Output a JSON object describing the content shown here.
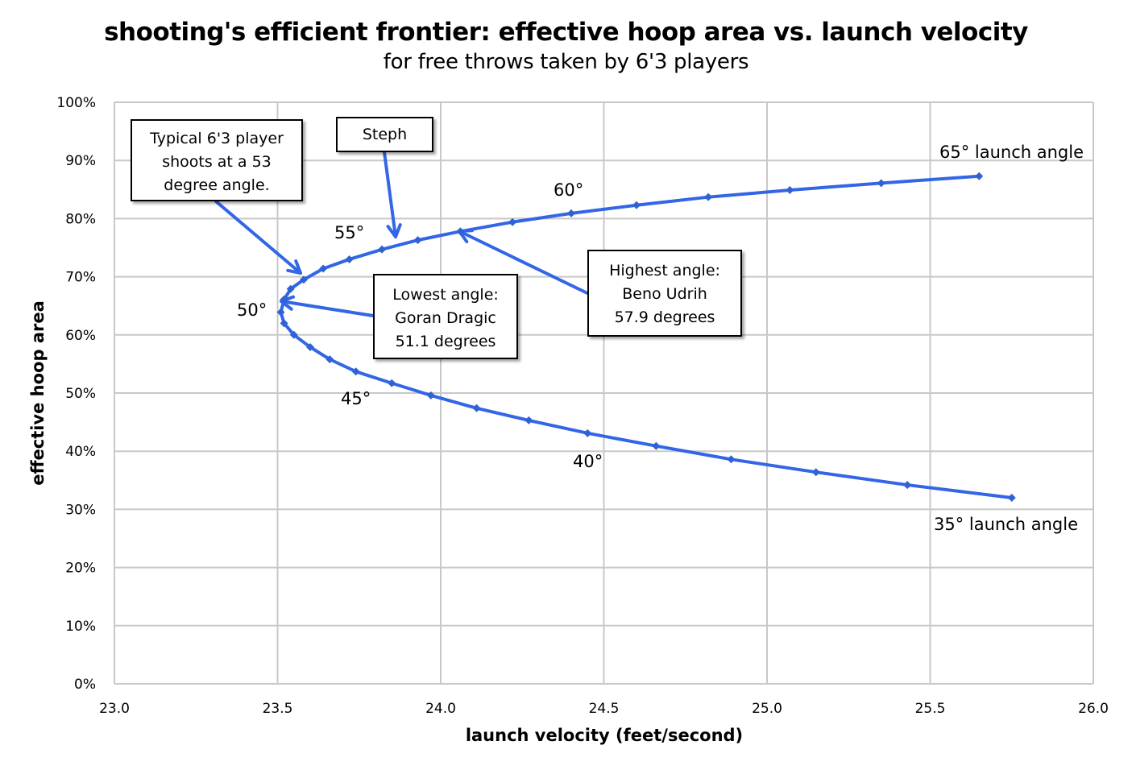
{
  "chart_data": {
    "type": "line",
    "title": "shooting's efficient frontier: effective hoop area vs. launch velocity",
    "subtitle": "for free throws taken by 6'3 players",
    "xlabel": "launch velocity (feet/second)",
    "ylabel": "effective hoop area",
    "xlim": [
      23.0,
      26.0
    ],
    "ylim": [
      0,
      100
    ],
    "x_ticks": [
      "23.0",
      "23.5",
      "24.0",
      "24.5",
      "25.0",
      "25.5",
      "26.0"
    ],
    "y_ticks": [
      "0%",
      "10%",
      "20%",
      "30%",
      "40%",
      "50%",
      "60%",
      "70%",
      "80%",
      "90%",
      "100%"
    ],
    "grid": true,
    "legend": "none",
    "series": [
      {
        "name": "launch angle 65° to 35°",
        "color": "#3366e6",
        "marker": "diamond",
        "points": [
          {
            "angle": 65,
            "x": 25.65,
            "y": 87.3
          },
          {
            "angle": 64,
            "x": 25.35,
            "y": 86.1
          },
          {
            "angle": 63,
            "x": 25.07,
            "y": 84.9
          },
          {
            "angle": 62,
            "x": 24.82,
            "y": 83.7
          },
          {
            "angle": 61,
            "x": 24.6,
            "y": 82.3
          },
          {
            "angle": 60,
            "x": 24.4,
            "y": 80.9
          },
          {
            "angle": 59,
            "x": 24.22,
            "y": 79.4
          },
          {
            "angle": 58,
            "x": 24.06,
            "y": 77.8
          },
          {
            "angle": 57,
            "x": 23.93,
            "y": 76.3
          },
          {
            "angle": 56,
            "x": 23.82,
            "y": 74.7
          },
          {
            "angle": 55,
            "x": 23.72,
            "y": 73.0
          },
          {
            "angle": 54,
            "x": 23.64,
            "y": 71.4
          },
          {
            "angle": 53,
            "x": 23.58,
            "y": 69.5
          },
          {
            "angle": 52,
            "x": 23.54,
            "y": 67.9
          },
          {
            "angle": 51,
            "x": 23.52,
            "y": 66.1
          },
          {
            "angle": 50,
            "x": 23.51,
            "y": 63.9
          },
          {
            "angle": 49,
            "x": 23.52,
            "y": 62.0
          },
          {
            "angle": 48,
            "x": 23.55,
            "y": 60.0
          },
          {
            "angle": 47,
            "x": 23.6,
            "y": 57.9
          },
          {
            "angle": 46,
            "x": 23.66,
            "y": 55.8
          },
          {
            "angle": 45,
            "x": 23.74,
            "y": 53.7
          },
          {
            "angle": 44,
            "x": 23.85,
            "y": 51.7
          },
          {
            "angle": 43,
            "x": 23.97,
            "y": 49.6
          },
          {
            "angle": 42,
            "x": 24.11,
            "y": 47.4
          },
          {
            "angle": 41,
            "x": 24.27,
            "y": 45.3
          },
          {
            "angle": 40,
            "x": 24.45,
            "y": 43.1
          },
          {
            "angle": 39,
            "x": 24.66,
            "y": 40.9
          },
          {
            "angle": 38,
            "x": 24.89,
            "y": 38.6
          },
          {
            "angle": 37,
            "x": 25.15,
            "y": 36.4
          },
          {
            "angle": 36,
            "x": 25.43,
            "y": 34.2
          },
          {
            "angle": 35,
            "x": 25.75,
            "y": 32.0
          }
        ]
      }
    ],
    "annotations": [
      {
        "text": "65° launch angle",
        "x": 25.5,
        "y": 90
      },
      {
        "text": "60°",
        "x": 24.35,
        "y": 84.5
      },
      {
        "text": "55°",
        "x": 23.7,
        "y": 77
      },
      {
        "text": "50°",
        "x": 23.42,
        "y": 64.5
      },
      {
        "text": "45°",
        "x": 23.75,
        "y": 49
      },
      {
        "text": "40°",
        "x": 24.45,
        "y": 38.5
      },
      {
        "text": "35° launch angle",
        "x": 25.75,
        "y": 27.5
      }
    ],
    "callouts": [
      {
        "lines": [
          "Typical 6'3 player",
          "shoots at a 53",
          "degree angle."
        ],
        "points_to_angle": 53
      },
      {
        "lines": [
          "Steph"
        ],
        "points_to_x": 23.86,
        "points_to_y": 76
      },
      {
        "lines": [
          "Lowest angle:",
          "Goran Dragic",
          "51.1 degrees"
        ],
        "points_to_angle": 51.1
      },
      {
        "lines": [
          "Highest angle:",
          "Beno Udrih",
          "57.9 degrees"
        ],
        "points_to_angle": 57.9
      }
    ]
  },
  "labels": {
    "angle_65": "65° launch angle",
    "angle_60": "60°",
    "angle_55": "55°",
    "angle_50": "50°",
    "angle_45": "45°",
    "angle_40": "40°",
    "angle_35": "35° launch angle"
  },
  "callouts": {
    "typical": [
      "Typical 6'3 player",
      "shoots at a 53",
      "degree angle."
    ],
    "steph": [
      "Steph"
    ],
    "lowest": [
      "Lowest angle:",
      "Goran Dragic",
      "51.1 degrees"
    ],
    "highest": [
      "Highest angle:",
      "Beno Udrih",
      "57.9 degrees"
    ]
  }
}
